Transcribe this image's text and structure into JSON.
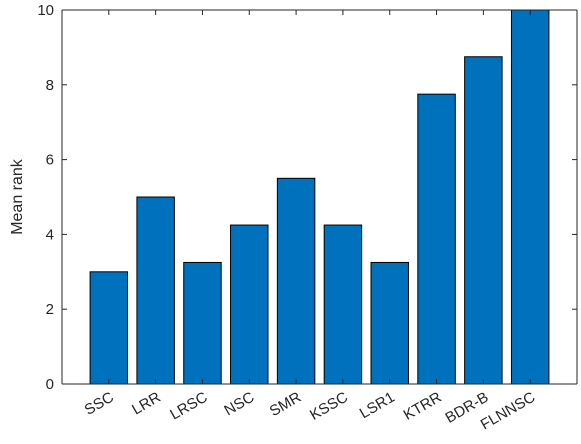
{
  "chart_data": {
    "type": "bar",
    "categories": [
      "SSC",
      "LRR",
      "LRSC",
      "NSC",
      "SMR",
      "KSSC",
      "LSR1",
      "KTRR",
      "BDR-B",
      "FLNNSC"
    ],
    "values": [
      3.0,
      5.0,
      3.25,
      4.25,
      5.5,
      4.25,
      3.25,
      7.75,
      8.75,
      10.0
    ],
    "ylabel": "Mean rank",
    "xlabel": "",
    "ylim": [
      0,
      10
    ],
    "yticks": [
      0,
      2,
      4,
      6,
      8,
      10
    ],
    "xtick_rotation": -30,
    "bar_color": "#0072BD",
    "bar_edge_color": "#000000",
    "box": true,
    "grid": false
  }
}
